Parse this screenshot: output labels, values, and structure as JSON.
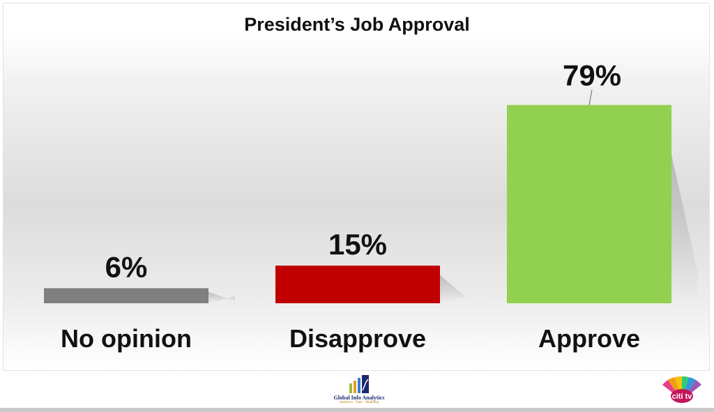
{
  "chart_data": {
    "type": "bar",
    "title": "President’s Job Approval",
    "categories": [
      "No opinion",
      "Disapprove",
      "Approve"
    ],
    "values": [
      6,
      15,
      79
    ],
    "value_labels": [
      "6%",
      "15%",
      "79%"
    ],
    "colors": [
      "#7f7f7f",
      "#c00000",
      "#92d050"
    ],
    "ylim": [
      0,
      100
    ],
    "grid": false,
    "legend": "none"
  },
  "branding": {
    "left_logo_name": "Global Info Analytics",
    "left_logo_tagline": "Analytics · Data · Modeling",
    "right_logo_text": "citi tv"
  }
}
